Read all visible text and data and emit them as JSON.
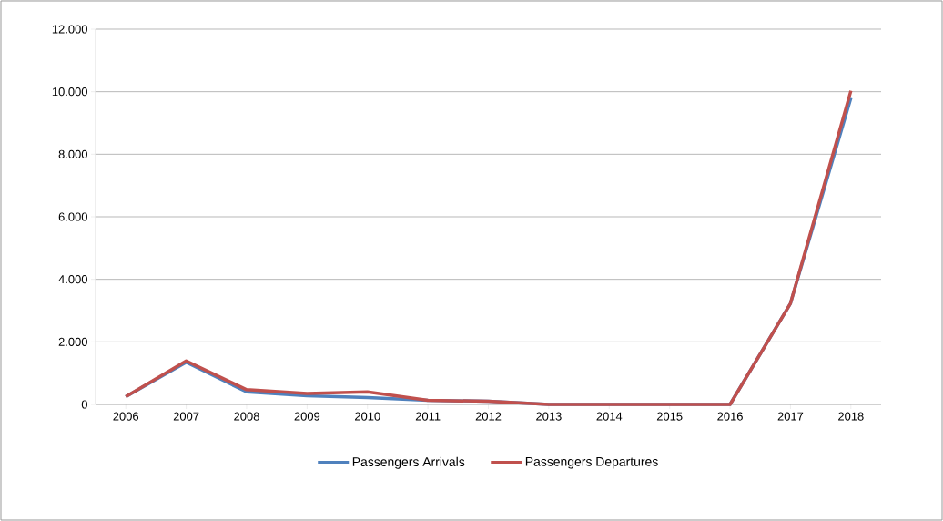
{
  "chart_data": {
    "type": "line",
    "categories": [
      "2006",
      "2007",
      "2008",
      "2009",
      "2010",
      "2011",
      "2012",
      "2013",
      "2014",
      "2015",
      "2016",
      "2017",
      "2018"
    ],
    "series": [
      {
        "name": "Passengers Arrivals",
        "color": "#4f81bd",
        "values": [
          250,
          1350,
          400,
          280,
          220,
          130,
          100,
          0,
          0,
          0,
          0,
          3230,
          9800
        ]
      },
      {
        "name": "Passengers Departures",
        "color": "#c0504d",
        "values": [
          250,
          1390,
          470,
          350,
          400,
          130,
          100,
          0,
          0,
          0,
          0,
          3230,
          10030
        ]
      }
    ],
    "ylim": [
      0,
      12000
    ],
    "yticks": [
      0,
      {
        "value": 2000,
        "label": "2.000"
      },
      {
        "value": 4000,
        "label": "4.000"
      },
      {
        "value": 6000,
        "label": "6.000"
      },
      {
        "value": 8000,
        "label": "8.000"
      },
      {
        "value": 10000,
        "label": "10.000"
      },
      {
        "value": 12000,
        "label": "12.000"
      }
    ],
    "grid": "y",
    "legend": "bottom",
    "marker": "none",
    "line_style": "solid"
  }
}
